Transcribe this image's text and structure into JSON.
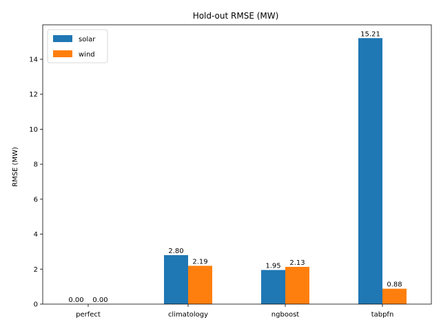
{
  "chart_data": {
    "type": "bar",
    "title": "Hold-out RMSE (MW)",
    "xlabel": "",
    "ylabel": "RMSE (MW)",
    "categories": [
      "perfect",
      "climatology",
      "ngboost",
      "tabpfn"
    ],
    "series": [
      {
        "name": "solar",
        "color": "#1f77b4",
        "values": [
          0.0,
          2.8,
          1.95,
          15.21
        ],
        "labels": [
          "0.00",
          "2.80",
          "1.95",
          "15.21"
        ]
      },
      {
        "name": "wind",
        "color": "#ff7f0e",
        "values": [
          0.0,
          2.19,
          2.13,
          0.88
        ],
        "labels": [
          "0.00",
          "2.19",
          "2.13",
          "0.88"
        ]
      }
    ],
    "ylim": [
      0,
      15.97
    ],
    "yticks": [
      "0",
      "2",
      "4",
      "6",
      "8",
      "10",
      "12",
      "14"
    ],
    "grid": false,
    "legend": "top-left"
  }
}
